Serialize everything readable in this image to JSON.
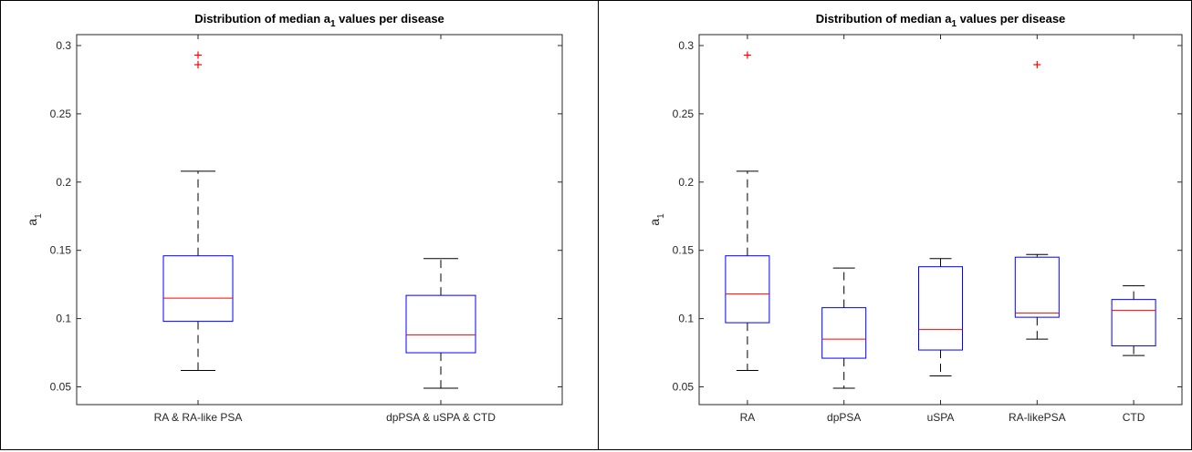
{
  "chart_data": [
    {
      "type": "box",
      "title": "Distribution of median a",
      "title_sub": "1",
      "title_rest": " values per disease",
      "ylabel": "a",
      "ylabel_sub": "1",
      "ylim": [
        0.037,
        0.308
      ],
      "yticks": [
        0.05,
        0.1,
        0.15,
        0.2,
        0.25,
        0.3
      ],
      "ytick_labels": [
        "0.05",
        "0.1",
        "0.15",
        "0.2",
        "0.25",
        "0.3"
      ],
      "categories": [
        "RA & RA-like PSA",
        "dpPSA & uSPA & CTD"
      ],
      "boxes": [
        {
          "whisker_low": 0.062,
          "q1": 0.098,
          "median": 0.115,
          "q3": 0.146,
          "whisker_high": 0.208,
          "outliers": [
            0.286,
            0.293
          ]
        },
        {
          "whisker_low": 0.049,
          "q1": 0.075,
          "median": 0.088,
          "q3": 0.117,
          "whisker_high": 0.144,
          "outliers": []
        }
      ],
      "colors": {
        "box": "#0000ff",
        "median": "#ff0000",
        "whisker": "#000000",
        "outlier": "#ff0000"
      }
    },
    {
      "type": "box",
      "title": "Distribution of median a",
      "title_sub": "1",
      "title_rest": " values per disease",
      "ylabel": "a",
      "ylabel_sub": "1",
      "ylim": [
        0.037,
        0.308
      ],
      "yticks": [
        0.05,
        0.1,
        0.15,
        0.2,
        0.25,
        0.3
      ],
      "ytick_labels": [
        "0.05",
        "0.1",
        "0.15",
        "0.2",
        "0.25",
        "0.3"
      ],
      "categories": [
        "RA",
        "dpPSA",
        "uSPA",
        "RA-likePSA",
        "CTD"
      ],
      "boxes": [
        {
          "whisker_low": 0.062,
          "q1": 0.097,
          "median": 0.118,
          "q3": 0.146,
          "whisker_high": 0.208,
          "outliers": [
            0.293
          ]
        },
        {
          "whisker_low": 0.049,
          "q1": 0.071,
          "median": 0.085,
          "q3": 0.108,
          "whisker_high": 0.137,
          "outliers": []
        },
        {
          "whisker_low": 0.058,
          "q1": 0.077,
          "median": 0.092,
          "q3": 0.138,
          "whisker_high": 0.144,
          "outliers": []
        },
        {
          "whisker_low": 0.085,
          "q1": 0.101,
          "median": 0.104,
          "q3": 0.145,
          "whisker_high": 0.147,
          "outliers": [
            0.286
          ]
        },
        {
          "whisker_low": 0.073,
          "q1": 0.08,
          "median": 0.106,
          "q3": 0.114,
          "whisker_high": 0.124,
          "outliers": []
        }
      ],
      "colors": {
        "box": "#0000ff",
        "median": "#ff0000",
        "whisker": "#000000",
        "outlier": "#ff0000"
      }
    }
  ]
}
